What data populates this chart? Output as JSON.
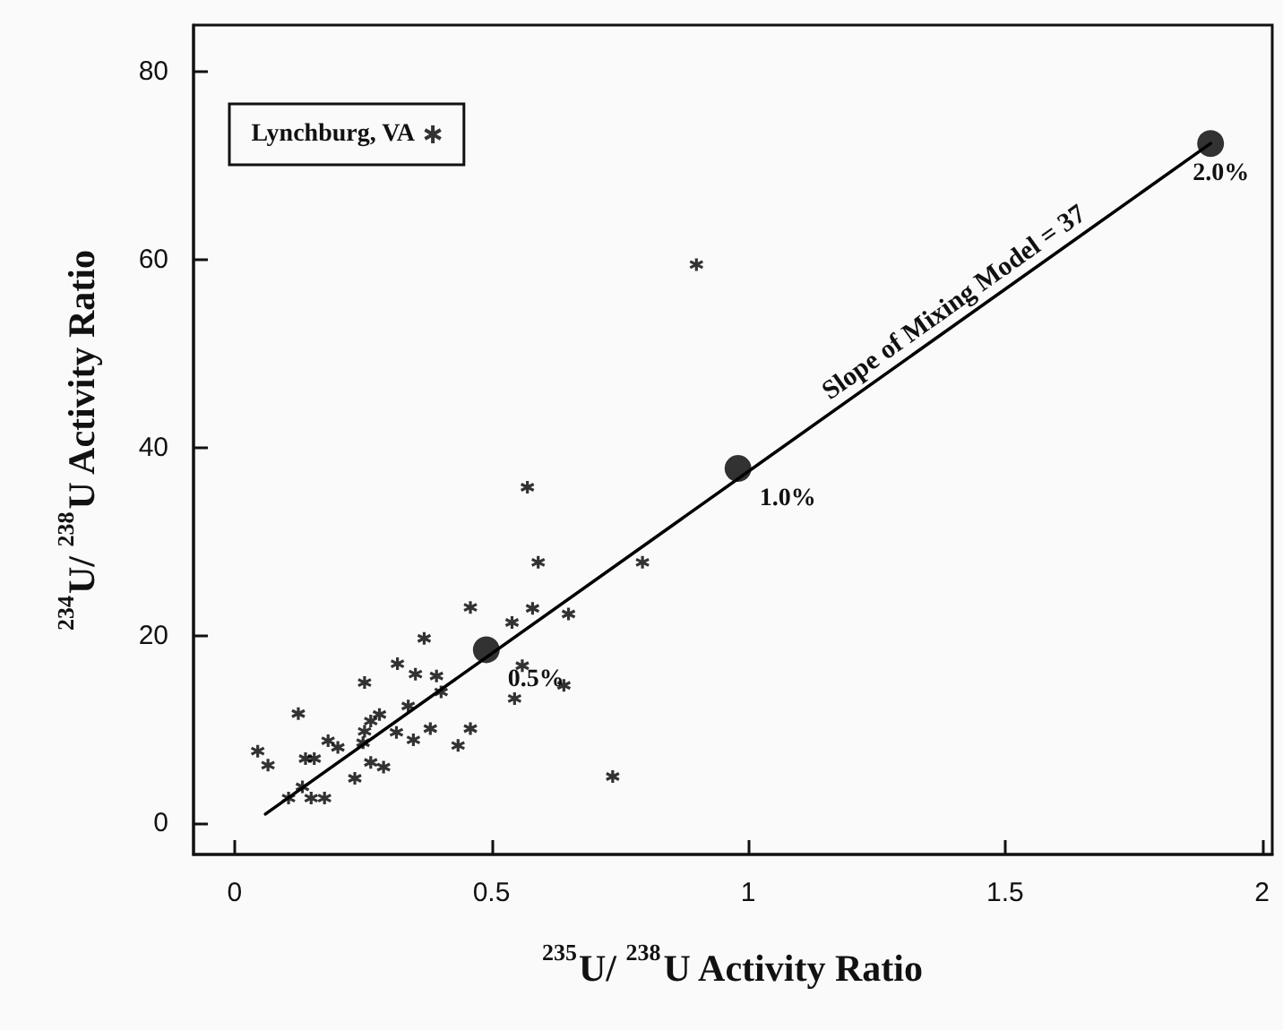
{
  "chart_data": {
    "type": "scatter",
    "xlabel": "$^{235}$U/ $^{238}$U Activity Ratio",
    "ylabel": "$^{234}$U/ $^{238}$U Activity Ratio",
    "xlim": [
      -0.08,
      2.02
    ],
    "ylim": [
      -3.3,
      85
    ],
    "xticks": [
      0,
      0.5,
      1,
      1.5,
      2
    ],
    "yticks": [
      0,
      20,
      40,
      60,
      80
    ],
    "grid": false,
    "legend": "top left",
    "annotations": [
      "Slope of Mixing Model = 37",
      {
        "text": "0.5%",
        "x": 0.49,
        "y": 18.5
      },
      {
        "text": "1.0%",
        "x": 0.98,
        "y": 37.8
      },
      {
        "text": "2.0%",
        "x": 1.9,
        "y": 72.4
      }
    ],
    "series": [
      {
        "name": "Lynchburg, VA",
        "marker": "cross",
        "color": "#000000",
        "x": [
          0.045,
          0.065,
          0.124,
          0.138,
          0.155,
          0.182,
          0.201,
          0.105,
          0.132,
          0.149,
          0.175,
          0.234,
          0.253,
          0.253,
          0.265,
          0.282,
          0.25,
          0.265,
          0.29,
          0.317,
          0.315,
          0.338,
          0.348,
          0.352,
          0.369,
          0.381,
          0.393,
          0.402,
          0.435,
          0.459,
          0.459,
          0.54,
          0.545,
          0.56,
          0.57,
          0.58,
          0.591,
          0.641,
          0.65,
          0.736,
          0.794,
          0.899
        ],
        "values": [
          7.7,
          6.2,
          11.7,
          6.9,
          6.9,
          8.8,
          8.1,
          2.7,
          3.9,
          2.7,
          2.7,
          4.8,
          15.0,
          9.8,
          10.9,
          11.6,
          8.6,
          6.5,
          6.0,
          17.0,
          9.7,
          12.5,
          8.9,
          15.9,
          19.7,
          10.1,
          15.7,
          14.0,
          8.3,
          23.0,
          10.1,
          21.4,
          13.3,
          16.8,
          35.8,
          22.9,
          27.8,
          14.7,
          22.3,
          5.0,
          27.8,
          59.5
        ]
      },
      {
        "type": "line",
        "marker": "none",
        "color": "#000000",
        "x": [
          0.06,
          1.9
        ],
        "values": [
          1,
          72.4
        ]
      },
      {
        "type": "scatter",
        "marker": "circle",
        "color": "#000000",
        "x": [
          0.49,
          0.98,
          1.9
        ],
        "values": [
          18.5,
          37.8,
          72.4
        ]
      }
    ]
  }
}
